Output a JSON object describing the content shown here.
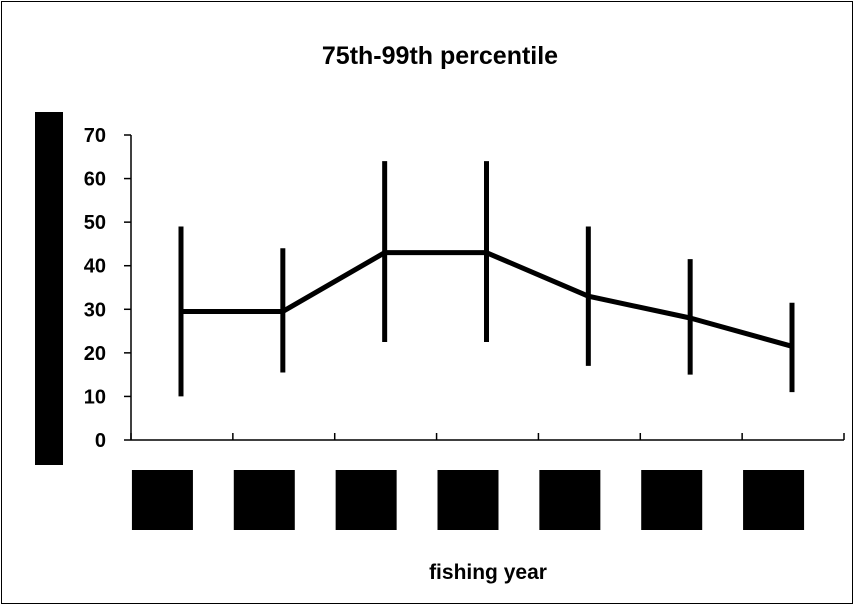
{
  "chart_data": {
    "type": "line",
    "title": "75th-99th percentile",
    "xlabel": "fishing year",
    "ylabel": "",
    "ylim": [
      0,
      70
    ],
    "yticks": [
      0,
      10,
      20,
      30,
      40,
      50,
      60,
      70
    ],
    "grid": false,
    "legend": "none",
    "categories": [
      "",
      "",
      "",
      "",
      "",
      "",
      ""
    ],
    "series": [
      {
        "values": [
          29.5,
          29.5,
          43,
          43,
          33,
          28,
          21.5
        ],
        "error_low": [
          10,
          15.5,
          22.5,
          22.5,
          17,
          15,
          11
        ],
        "error_high": [
          49,
          44,
          64,
          64,
          49,
          41.5,
          31.5
        ]
      }
    ],
    "colors": {
      "line": "#000000",
      "background": "#ffffff",
      "frame": "#000000"
    }
  }
}
